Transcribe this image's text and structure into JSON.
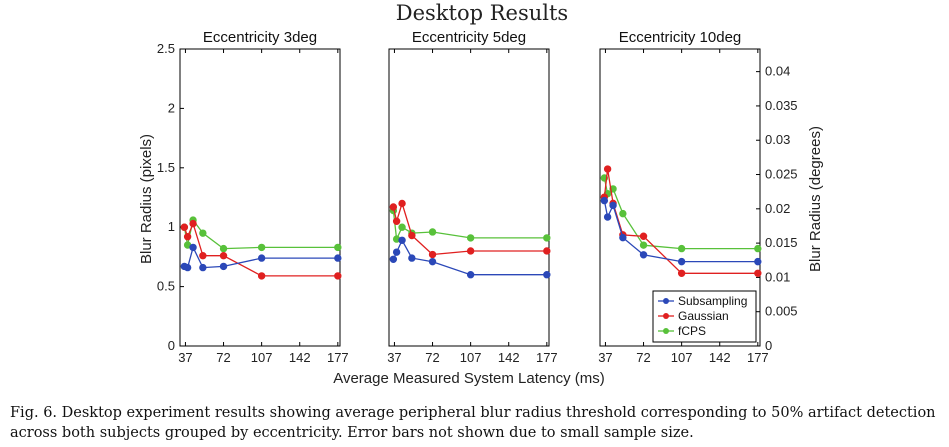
{
  "title": "Desktop Results",
  "xlabel": "Average Measured System Latency (ms)",
  "ylabel_left": "Blur Radius (pixels)",
  "ylabel_right": "Blur Radius (degrees)",
  "caption": {
    "line1": "Fig. 6.  Desktop experiment results showing average peripheral blur radius threshold corresponding to 50% artifact detection",
    "line2": "across both subjects grouped by eccentricity. Error bars not shown due to small sample size."
  },
  "colors": {
    "Subsampling": "#2b48b8",
    "Gaussian": "#e02020",
    "fCPS": "#58c13a"
  },
  "chart_data": {
    "type": "line",
    "x_ticks": [
      37,
      72,
      107,
      142,
      177
    ],
    "xlim": [
      32,
      179
    ],
    "left_axis": {
      "ylim": [
        0,
        2.5
      ],
      "ticks": [
        "0",
        "0.5",
        "1",
        "1.5",
        "2",
        "2.5"
      ]
    },
    "right_axis": {
      "ylim": [
        0,
        0.0433
      ],
      "ticks": [
        "0",
        "0.005",
        "0.01",
        "0.015",
        "0.02",
        "0.025",
        "0.03",
        "0.035",
        "0.04"
      ]
    },
    "legend": [
      "Subsampling",
      "Gaussian",
      "fCPS"
    ],
    "legend_position": "bottom-right",
    "panels": [
      {
        "title": "Eccentricity 3deg",
        "series": [
          {
            "name": "Subsampling",
            "x": [
              36,
              39,
              44,
              53,
              72,
              107,
              177
            ],
            "y": [
              0.67,
              0.66,
              0.83,
              0.66,
              0.67,
              0.74,
              0.74
            ]
          },
          {
            "name": "Gaussian",
            "x": [
              36,
              39,
              44,
              53,
              72,
              107,
              177
            ],
            "y": [
              1.0,
              0.92,
              1.03,
              0.76,
              0.76,
              0.59,
              0.59
            ]
          },
          {
            "name": "fCPS",
            "x": [
              36,
              39,
              44,
              53,
              72,
              107,
              177
            ],
            "y": [
              1.0,
              0.85,
              1.06,
              0.95,
              0.82,
              0.83,
              0.83
            ]
          }
        ]
      },
      {
        "title": "Eccentricity 5deg",
        "series": [
          {
            "name": "Subsampling",
            "x": [
              36,
              39,
              44,
              53,
              72,
              107,
              177
            ],
            "y": [
              0.73,
              0.79,
              0.89,
              0.74,
              0.71,
              0.6,
              0.6
            ]
          },
          {
            "name": "Gaussian",
            "x": [
              36,
              39,
              44,
              53,
              72,
              107,
              177
            ],
            "y": [
              1.17,
              1.05,
              1.2,
              0.93,
              0.77,
              0.8,
              0.8
            ]
          },
          {
            "name": "fCPS",
            "x": [
              36,
              39,
              44,
              53,
              72,
              107,
              177
            ],
            "y": [
              1.14,
              0.9,
              1.0,
              0.95,
              0.96,
              0.91,
              0.91
            ]
          }
        ]
      },
      {
        "title": "Eccentricity 10deg",
        "series": [
          {
            "name": "Subsampling",
            "x": [
              36,
              39,
              44,
              53,
              72,
              107,
              177
            ],
            "y": [
              0.0212,
              0.0188,
              0.0205,
              0.0158,
              0.0133,
              0.0123,
              0.0123
            ]
          },
          {
            "name": "Gaussian",
            "x": [
              36,
              39,
              44,
              53,
              72,
              107,
              177
            ],
            "y": [
              0.0217,
              0.0258,
              0.0208,
              0.0162,
              0.016,
              0.0106,
              0.0106
            ]
          },
          {
            "name": "fCPS",
            "x": [
              36,
              39,
              44,
              53,
              72,
              107,
              177
            ],
            "y": [
              0.0245,
              0.0222,
              0.0229,
              0.0193,
              0.0147,
              0.0142,
              0.0142
            ]
          }
        ]
      }
    ]
  }
}
